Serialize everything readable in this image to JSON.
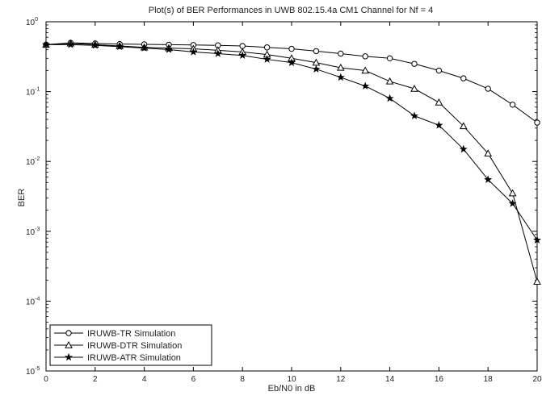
{
  "chart_data": {
    "type": "line",
    "title": "Plot(s) of BER Performances in UWB 802.15.4a CM1 Channel for  Nf = 4",
    "xlabel": "Eb/N0 in dB",
    "ylabel": "BER",
    "xlim": [
      0,
      20
    ],
    "ylim": [
      1e-05,
      1
    ],
    "yscale": "log",
    "grid": false,
    "legend_position": "bottom-left",
    "x_ticks": [
      "0",
      "2",
      "4",
      "6",
      "8",
      "10",
      "12",
      "14",
      "16",
      "18",
      "20"
    ],
    "y_ticks": [
      {
        "base": "10",
        "exp": "0"
      },
      {
        "base": "10",
        "exp": "-1"
      },
      {
        "base": "10",
        "exp": "-2"
      },
      {
        "base": "10",
        "exp": "-3"
      },
      {
        "base": "10",
        "exp": "-4"
      },
      {
        "base": "10",
        "exp": "-5"
      }
    ],
    "x": [
      0,
      1,
      2,
      3,
      4,
      5,
      6,
      7,
      8,
      9,
      10,
      11,
      12,
      13,
      14,
      15,
      16,
      17,
      18,
      19,
      20
    ],
    "series": [
      {
        "name": "IRUWB-TR Simulation",
        "marker": "circle",
        "color": "#000000",
        "values": [
          0.47,
          0.5,
          0.49,
          0.48,
          0.475,
          0.47,
          0.465,
          0.46,
          0.45,
          0.43,
          0.41,
          0.38,
          0.35,
          0.32,
          0.3,
          0.25,
          0.2,
          0.155,
          0.11,
          0.065,
          0.036
        ]
      },
      {
        "name": "IRUWB-DTR Simulation",
        "marker": "triangle",
        "color": "#000000",
        "values": [
          0.47,
          0.49,
          0.47,
          0.45,
          0.43,
          0.42,
          0.41,
          0.39,
          0.37,
          0.34,
          0.3,
          0.26,
          0.22,
          0.2,
          0.14,
          0.11,
          0.07,
          0.032,
          0.013,
          0.0035,
          0.00019
        ]
      },
      {
        "name": "IRUWB-ATR Simulation",
        "marker": "star",
        "color": "#000000",
        "values": [
          0.47,
          0.47,
          0.46,
          0.44,
          0.42,
          0.4,
          0.37,
          0.35,
          0.33,
          0.29,
          0.26,
          0.21,
          0.16,
          0.12,
          0.08,
          0.045,
          0.033,
          0.015,
          0.0055,
          0.0025,
          0.00075
        ]
      }
    ]
  }
}
